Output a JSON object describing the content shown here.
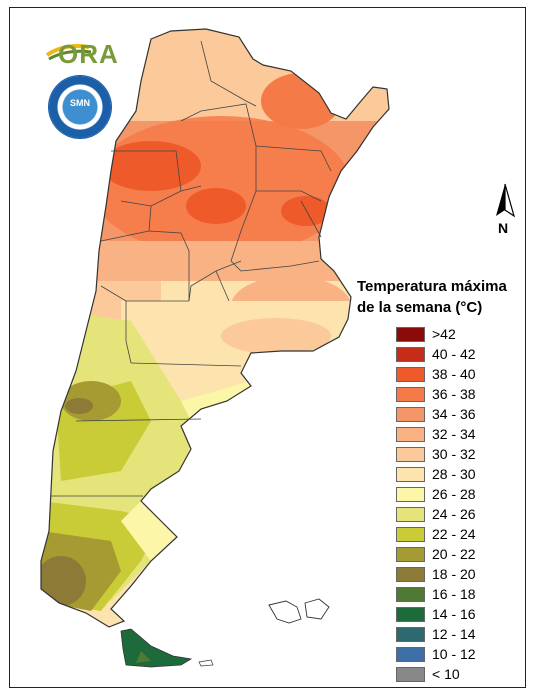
{
  "logo": {
    "text": "ORA",
    "icon": "ora-logo-sun-icon"
  },
  "seal": {
    "icon": "national-meteorological-service-seal-icon",
    "text": "SMN"
  },
  "north_arrow": {
    "label": "N",
    "icon": "north-arrow-icon"
  },
  "legend": {
    "title_line1": "Temperatura máxima",
    "title_line2": "de la semana (°C)",
    "items": [
      {
        "label": ">42",
        "color": "#8b0a0a"
      },
      {
        "label": "40 - 42",
        "color": "#c52d1a"
      },
      {
        "label": "38 - 40",
        "color": "#ef5a2a"
      },
      {
        "label": "36 - 38",
        "color": "#f47a48"
      },
      {
        "label": "34 - 36",
        "color": "#f59668"
      },
      {
        "label": "32 - 34",
        "color": "#f8b283"
      },
      {
        "label": "30 - 32",
        "color": "#fbc99a"
      },
      {
        "label": "28 - 30",
        "color": "#fde3ae"
      },
      {
        "label": "26 - 28",
        "color": "#fcf6a8"
      },
      {
        "label": "24 - 26",
        "color": "#e4e47a"
      },
      {
        "label": "22 - 24",
        "color": "#c9cc36"
      },
      {
        "label": "20 - 22",
        "color": "#a69a32"
      },
      {
        "label": "18 - 20",
        "color": "#8c7a36"
      },
      {
        "label": "16 - 18",
        "color": "#4f7a35"
      },
      {
        "label": "14 - 16",
        "color": "#1d6b3a"
      },
      {
        "label": "12 - 14",
        "color": "#2e6870"
      },
      {
        "label": "10 - 12",
        "color": "#3f6fa8"
      },
      {
        "label": "< 10",
        "color": "#888888"
      }
    ]
  }
}
